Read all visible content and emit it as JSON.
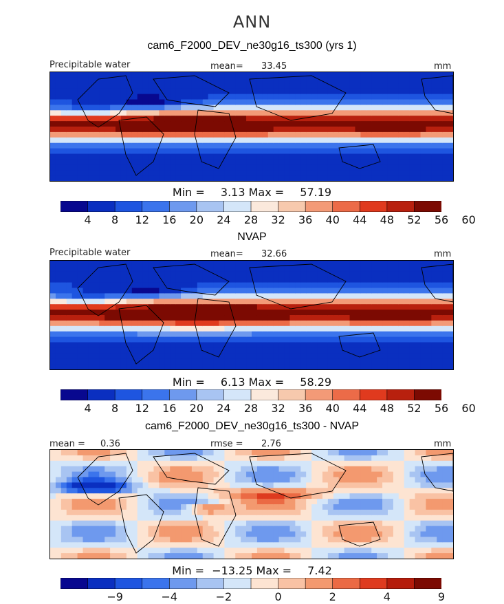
{
  "figure": {
    "title": "ANN"
  },
  "colors": {
    "panel_scale": [
      "#08088f",
      "#0a2fc0",
      "#1e55e0",
      "#3b74ec",
      "#6e99ee",
      "#a8c4f2",
      "#d4e6f9",
      "#fbe9dc",
      "#f7c9ad",
      "#f39a77",
      "#ec6b48",
      "#e03a1e",
      "#b8200e",
      "#7c0a02"
    ],
    "diff_scale": [
      "#08088f",
      "#0a2fc0",
      "#1e55e0",
      "#3b74ec",
      "#6e99ee",
      "#a8c4f2",
      "#d4e6f9",
      "#fde4d2",
      "#f9c2a4",
      "#f3996f",
      "#eb6a44",
      "#de3b1f",
      "#b51c0b",
      "#7c0a02"
    ],
    "coast": "#000000"
  },
  "chart_data": [
    {
      "type": "heatmap",
      "title": "cam6_F2000_DEV_ne30g16_ts300 (yrs 1)",
      "field": "Precipitable water",
      "units": "mm",
      "stat_label": "mean=",
      "stat_value": "33.45",
      "min_label": "Min =",
      "min": "3.13",
      "max_label": "Max =",
      "max": "57.19",
      "levels": [
        "4",
        "8",
        "12",
        "16",
        "20",
        "24",
        "28",
        "32",
        "36",
        "40",
        "44",
        "48",
        "52",
        "56",
        "60"
      ],
      "colorbar_ticks": [
        "4",
        "8",
        "12",
        "16",
        "20",
        "24",
        "28",
        "32",
        "36",
        "40",
        "44",
        "48",
        "52",
        "56",
        "60"
      ]
    },
    {
      "type": "heatmap",
      "title": "NVAP",
      "field": "Precipitable water",
      "units": "mm",
      "stat_label": "mean=",
      "stat_value": "32.66",
      "min_label": "Min =",
      "min": "6.13",
      "max_label": "Max =",
      "max": "58.29",
      "levels": [
        "4",
        "8",
        "12",
        "16",
        "20",
        "24",
        "28",
        "32",
        "36",
        "40",
        "44",
        "48",
        "52",
        "56",
        "60"
      ],
      "colorbar_ticks": [
        "4",
        "8",
        "12",
        "16",
        "20",
        "24",
        "28",
        "32",
        "36",
        "40",
        "44",
        "48",
        "52",
        "56",
        "60"
      ]
    },
    {
      "type": "heatmap",
      "title": "cam6_F2000_DEV_ne30g16_ts300 - NVAP",
      "units": "mm",
      "stat_label": "mean =",
      "stat_value": "0.36",
      "stat2_label": "rmse =",
      "stat2_value": "2.76",
      "min_label": "Min =",
      "min": "−13.25",
      "max_label": "Max =",
      "max": "7.42",
      "colorbar_ticks": [
        "−9",
        "−4",
        "−2",
        "0",
        "2",
        "4",
        "9"
      ]
    }
  ]
}
